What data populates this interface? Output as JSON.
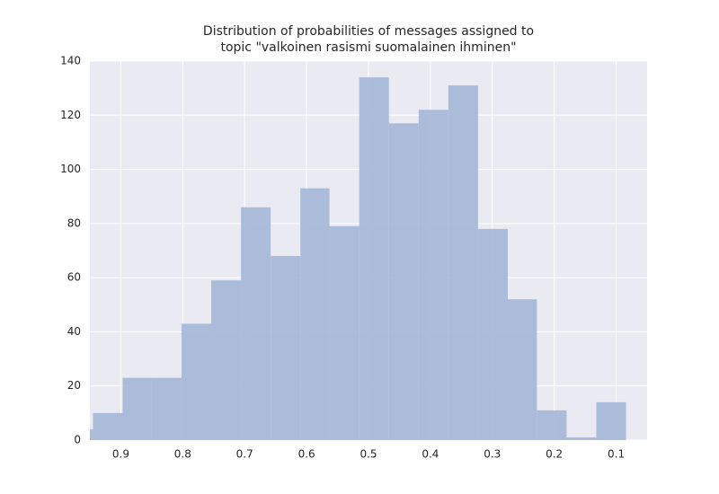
{
  "chart_data": {
    "type": "histogram",
    "title": [
      "Distribution of probabilities of messages assigned to",
      "topic \"valkoinen rasismi suomalainen ihminen\""
    ],
    "bins": [
      0.084,
      0.132,
      0.18,
      0.228,
      0.275,
      0.323,
      0.371,
      0.419,
      0.467,
      0.515,
      0.563,
      0.61,
      0.658,
      0.706,
      0.754,
      0.802,
      0.85,
      0.897,
      0.945,
      0.993
    ],
    "counts": [
      14,
      1,
      11,
      52,
      78,
      131,
      122,
      117,
      134,
      79,
      93,
      68,
      86,
      59,
      43,
      23,
      23,
      10,
      4
    ],
    "color": "#a8b8d8",
    "xlim": [
      0.95,
      0.05
    ],
    "xticks": [
      0.9,
      0.8,
      0.7,
      0.6,
      0.5,
      0.4,
      0.3,
      0.2,
      0.1
    ],
    "ylim": [
      0,
      140
    ],
    "yticks": [
      0,
      20,
      40,
      60,
      80,
      100,
      120,
      140
    ],
    "grid": true
  }
}
